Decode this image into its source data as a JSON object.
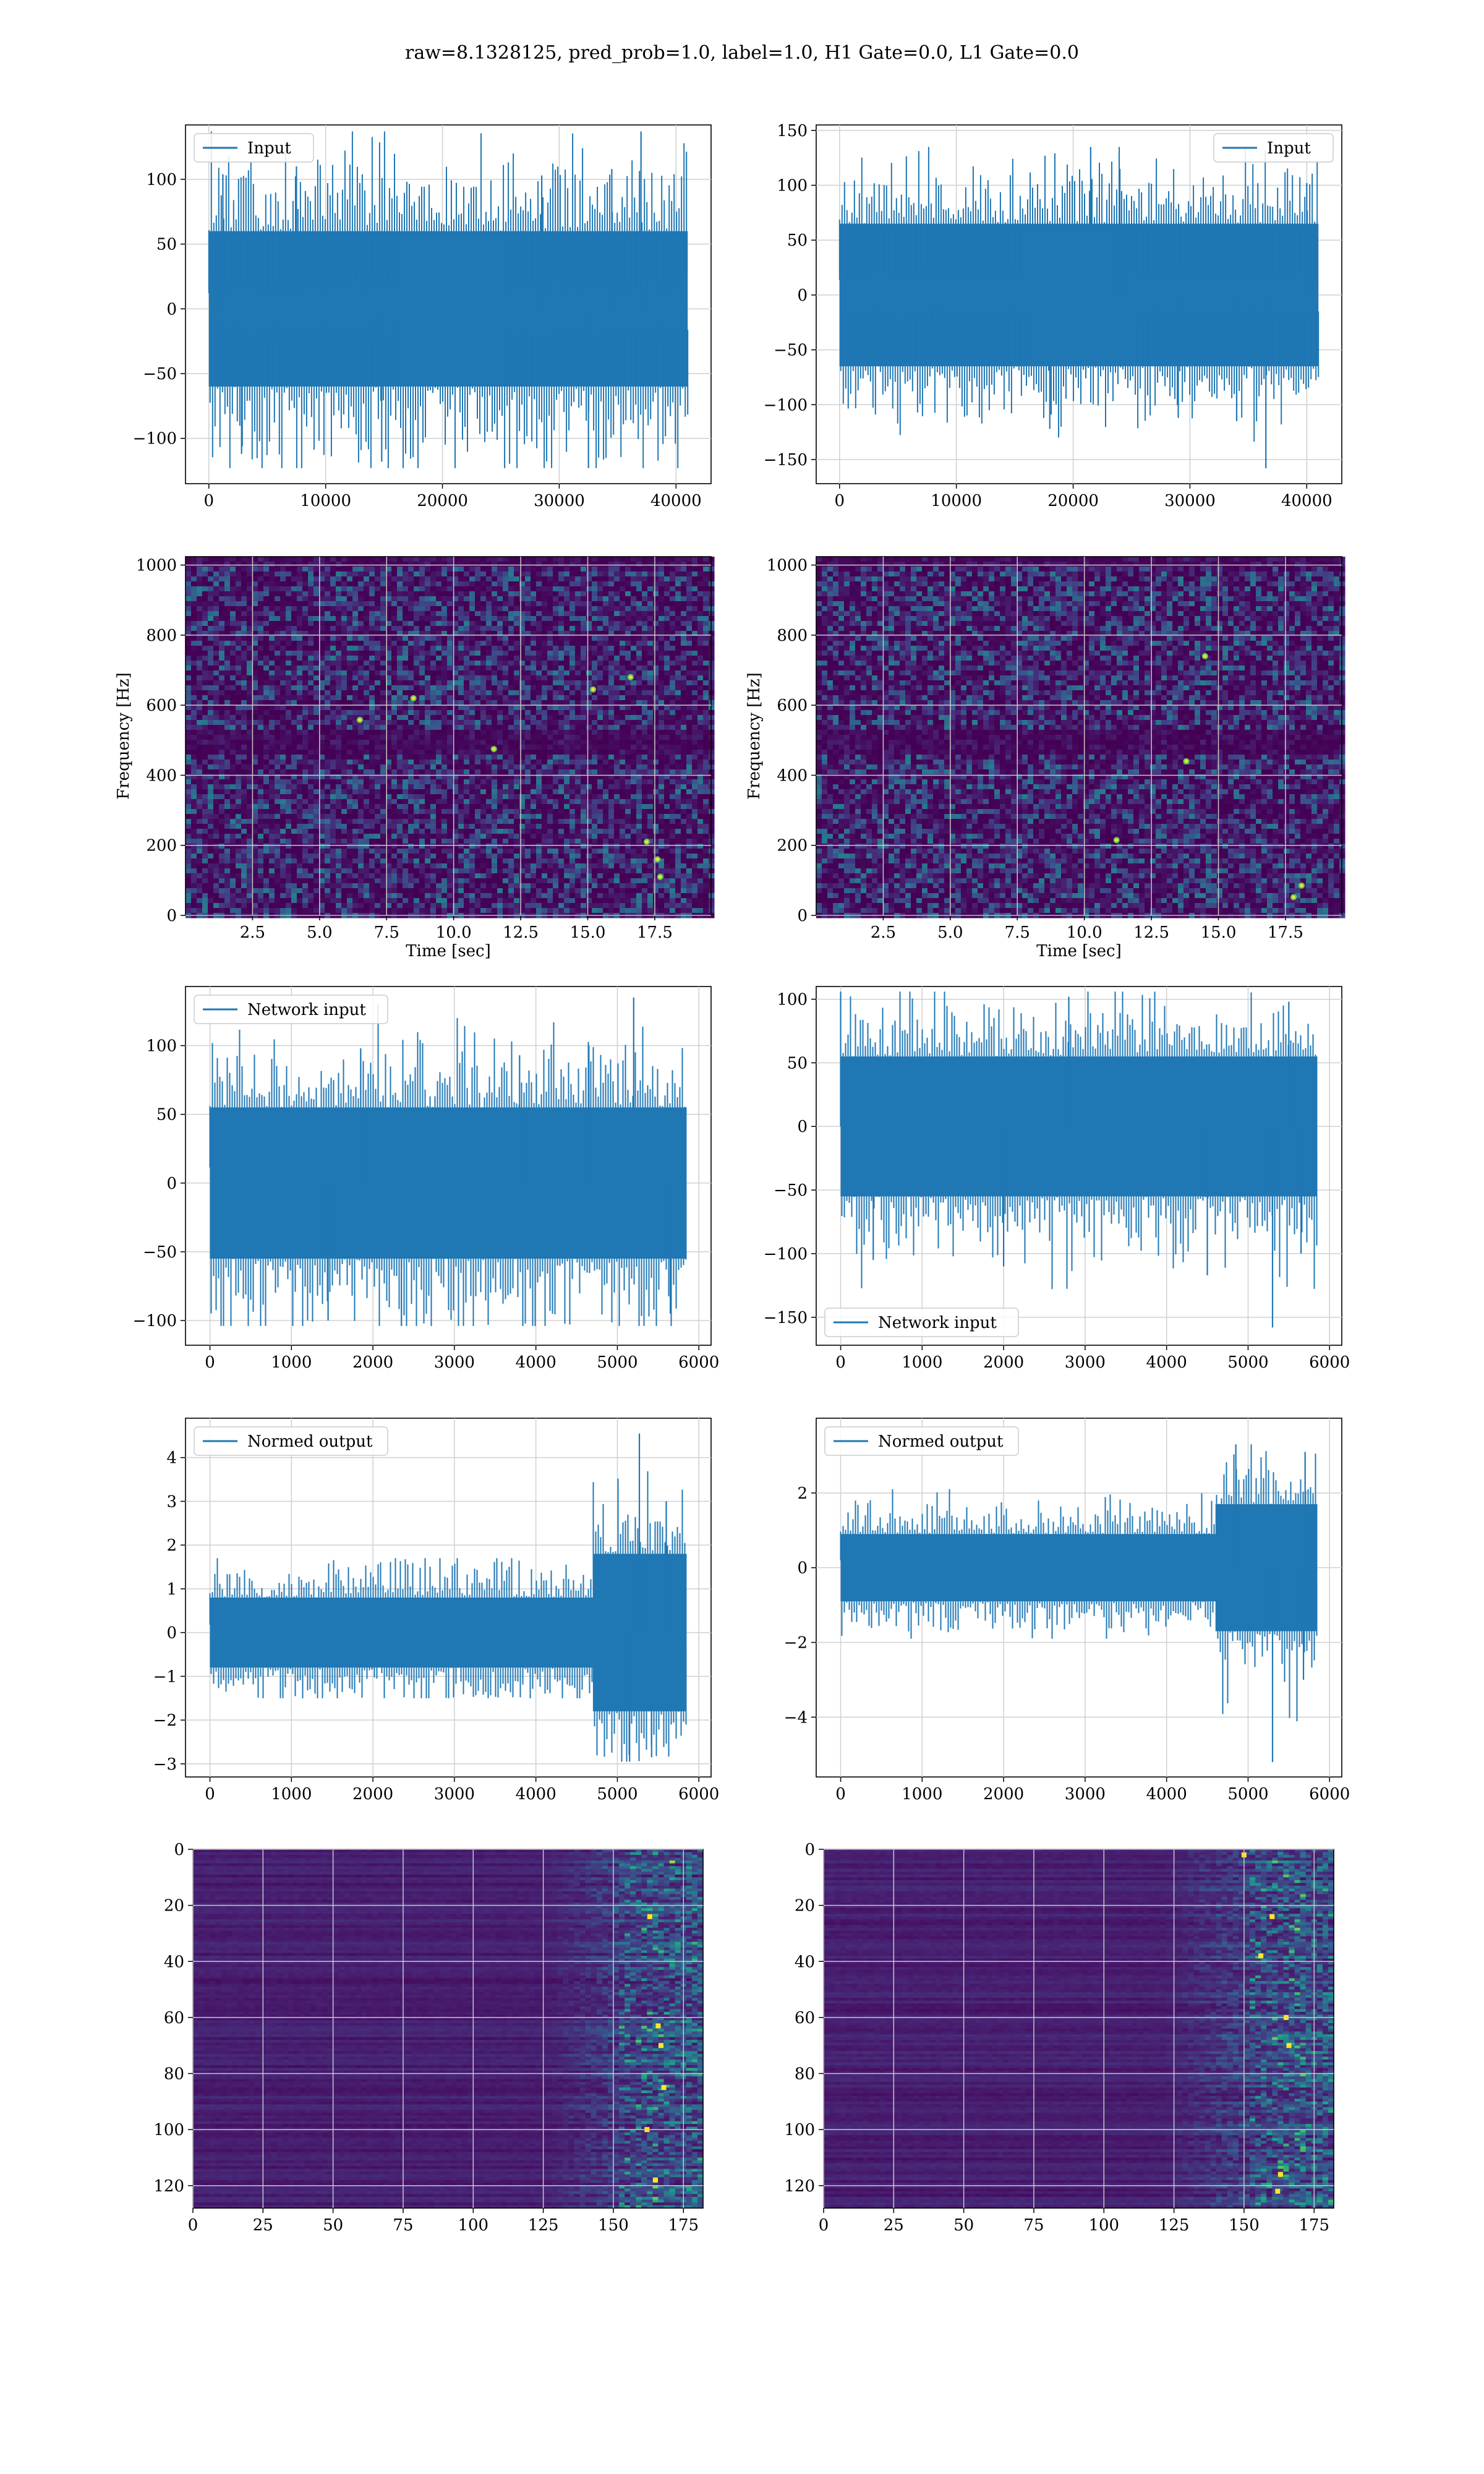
{
  "figure": {
    "title": "raw=8.1328125, pred_prob=1.0, label=1.0, H1 Gate=0.0, L1 Gate=0.0"
  },
  "colors": {
    "line": "#1f77b4",
    "grid": "#d0d0d0",
    "viridis_dark": "#440154",
    "viridis_mid": "#31688e",
    "viridis_teal": "#21918c",
    "viridis_green": "#5ec962",
    "viridis_yellow": "#fde725"
  },
  "chart_data": [
    {
      "id": "p1",
      "type": "line",
      "legend": [
        "Input"
      ],
      "legend_loc": "upper left",
      "xlim": [
        -2000,
        43000
      ],
      "ylim": [
        -135,
        142
      ],
      "xticks": [
        0,
        10000,
        20000,
        30000,
        40000
      ],
      "yticks": [
        -100,
        -50,
        0,
        50,
        100
      ],
      "grid": true,
      "x": [
        0,
        41000
      ],
      "envelope": {
        "core": 60,
        "peak": 105,
        "max": 137,
        "min": -123
      },
      "spikes": [
        [
          1200,
          104
        ],
        [
          2800,
          -112
        ],
        [
          7500,
          110
        ],
        [
          14800,
          -118
        ],
        [
          28500,
          103
        ],
        [
          32500,
          -123
        ],
        [
          37000,
          137
        ],
        [
          34500,
          108
        ]
      ]
    },
    {
      "id": "p2",
      "type": "line",
      "legend": [
        "Input"
      ],
      "legend_loc": "upper right",
      "xlim": [
        -2000,
        43000
      ],
      "ylim": [
        -172,
        155
      ],
      "xticks": [
        0,
        10000,
        20000,
        30000,
        40000
      ],
      "yticks": [
        -150,
        -100,
        -50,
        0,
        50,
        100,
        150
      ],
      "grid": true,
      "x": [
        0,
        41000
      ],
      "envelope": {
        "core": 65,
        "peak": 100,
        "max": 135,
        "min": -158
      },
      "spikes": [
        [
          21500,
          135
        ],
        [
          18000,
          -122
        ],
        [
          24000,
          115
        ],
        [
          36500,
          -158
        ],
        [
          34000,
          -115
        ],
        [
          29000,
          -112
        ],
        [
          40000,
          102
        ]
      ]
    },
    {
      "id": "p3",
      "type": "heatmap",
      "xlabel": "Time [sec]",
      "ylabel": "Frequency [Hz]",
      "xlim": [
        0.0,
        19.6
      ],
      "ylim": [
        0,
        1024
      ],
      "xticks": [
        "2.5",
        "5.0",
        "7.5",
        "10.0",
        "12.5",
        "15.0",
        "17.5"
      ],
      "yticks": [
        0,
        200,
        400,
        600,
        800,
        1000
      ],
      "grid": true,
      "dark_band_hz": 495,
      "bright_points": [
        [
          6.5,
          558
        ],
        [
          8.5,
          620
        ],
        [
          15.2,
          645
        ],
        [
          16.6,
          680
        ],
        [
          17.6,
          160
        ],
        [
          17.7,
          110
        ],
        [
          17.2,
          210
        ],
        [
          11.5,
          475
        ]
      ]
    },
    {
      "id": "p4",
      "type": "heatmap",
      "xlabel": "Time [sec]",
      "ylabel": "Frequency [Hz]",
      "xlim": [
        0.0,
        19.6
      ],
      "ylim": [
        0,
        1024
      ],
      "xticks": [
        "2.5",
        "5.0",
        "7.5",
        "10.0",
        "12.5",
        "15.0",
        "17.5"
      ],
      "yticks": [
        0,
        200,
        400,
        600,
        800,
        1000
      ],
      "grid": true,
      "dark_band_hz": 495,
      "bright_points": [
        [
          18.1,
          85
        ],
        [
          17.8,
          52
        ],
        [
          13.8,
          440
        ],
        [
          11.2,
          215
        ],
        [
          14.5,
          740
        ]
      ]
    },
    {
      "id": "p5",
      "type": "line",
      "legend": [
        "Network input"
      ],
      "legend_loc": "upper left",
      "xlim": [
        -300,
        6150
      ],
      "ylim": [
        -118,
        143
      ],
      "xticks": [
        0,
        1000,
        2000,
        3000,
        4000,
        5000,
        6000
      ],
      "yticks": [
        -100,
        -50,
        0,
        50,
        100
      ],
      "grid": true,
      "x": [
        0,
        5850
      ],
      "envelope": {
        "core": 55,
        "peak": 90,
        "max": 135,
        "min": -104
      },
      "spikes": [
        [
          5200,
          135
        ],
        [
          4650,
          100
        ],
        [
          2350,
          -104
        ],
        [
          1450,
          -100
        ],
        [
          1850,
          98
        ],
        [
          3800,
          93
        ],
        [
          5650,
          -95
        ]
      ]
    },
    {
      "id": "p6",
      "type": "line",
      "legend": [
        "Network input"
      ],
      "legend_loc": "lower left",
      "xlim": [
        -300,
        6150
      ],
      "ylim": [
        -172,
        110
      ],
      "xticks": [
        0,
        1000,
        2000,
        3000,
        4000,
        5000,
        6000
      ],
      "yticks": [
        -150,
        -100,
        -50,
        0,
        50,
        100
      ],
      "grid": true,
      "x": [
        0,
        5850
      ],
      "envelope": {
        "core": 55,
        "peak": 85,
        "max": 106,
        "min": -158
      },
      "spikes": [
        [
          0,
          106
        ],
        [
          2800,
          102
        ],
        [
          5300,
          -158
        ],
        [
          4500,
          -117
        ],
        [
          2000,
          -110
        ],
        [
          5650,
          -100
        ],
        [
          400,
          -105
        ],
        [
          5500,
          98
        ]
      ]
    },
    {
      "id": "p7",
      "type": "line",
      "legend": [
        "Normed output"
      ],
      "legend_loc": "upper left",
      "xlim": [
        -300,
        6150
      ],
      "ylim": [
        -3.3,
        4.9
      ],
      "xticks": [
        0,
        1000,
        2000,
        3000,
        4000,
        5000,
        6000
      ],
      "yticks": [
        -3,
        -2,
        -1,
        0,
        1,
        2,
        3,
        4
      ],
      "grid": true,
      "x": [
        0,
        5850
      ],
      "segments": [
        {
          "x0": 0,
          "x1": 4700,
          "core": 0.8,
          "peak": 1.4,
          "max": 1.7,
          "min": -1.5
        },
        {
          "x0": 4700,
          "x1": 5850,
          "core": 1.8,
          "peak": 2.7,
          "max": 4.55,
          "min": -2.95
        }
      ],
      "spikes": [
        [
          5270,
          4.55
        ],
        [
          5150,
          -2.95
        ],
        [
          5420,
          -2.85
        ],
        [
          5600,
          3.0
        ]
      ]
    },
    {
      "id": "p8",
      "type": "line",
      "legend": [
        "Normed output"
      ],
      "legend_loc": "upper left",
      "xlim": [
        -300,
        6150
      ],
      "ylim": [
        -5.6,
        4.0
      ],
      "xticks": [
        0,
        1000,
        2000,
        3000,
        4000,
        5000,
        6000
      ],
      "yticks": [
        -4,
        -2,
        0,
        2
      ],
      "grid": true,
      "x": [
        0,
        5850
      ],
      "segments": [
        {
          "x0": 0,
          "x1": 4600,
          "core": 0.9,
          "peak": 1.5,
          "max": 2.1,
          "min": -1.9
        },
        {
          "x0": 4600,
          "x1": 5850,
          "core": 1.7,
          "peak": 2.6,
          "max": 3.3,
          "min": -5.2
        }
      ],
      "spikes": [
        [
          5300,
          -5.2
        ],
        [
          4850,
          3.3
        ],
        [
          5700,
          3.1
        ],
        [
          5680,
          -3.0
        ]
      ]
    },
    {
      "id": "p9",
      "type": "heatmap",
      "xlim": [
        0,
        182
      ],
      "ylim": [
        128,
        0
      ],
      "xticks": [
        0,
        25,
        50,
        75,
        100,
        125,
        150,
        175
      ],
      "yticks": [
        0,
        20,
        40,
        60,
        80,
        100,
        120
      ],
      "grid": true,
      "activity_onset": 125,
      "bright_points": [
        [
          166,
          63
        ],
        [
          167,
          70
        ],
        [
          163,
          24
        ],
        [
          168,
          85
        ],
        [
          165,
          118
        ],
        [
          162,
          100
        ]
      ]
    },
    {
      "id": "p10",
      "type": "heatmap",
      "xlim": [
        0,
        182
      ],
      "ylim": [
        128,
        0
      ],
      "xticks": [
        0,
        25,
        50,
        75,
        100,
        125,
        150,
        175
      ],
      "yticks": [
        0,
        20,
        40,
        60,
        80,
        100,
        120
      ],
      "grid": true,
      "activity_onset": 120,
      "bright_points": [
        [
          166,
          70
        ],
        [
          163,
          116
        ],
        [
          160,
          24
        ],
        [
          165,
          60
        ],
        [
          150,
          2
        ],
        [
          162,
          122
        ],
        [
          156,
          38
        ]
      ]
    }
  ]
}
